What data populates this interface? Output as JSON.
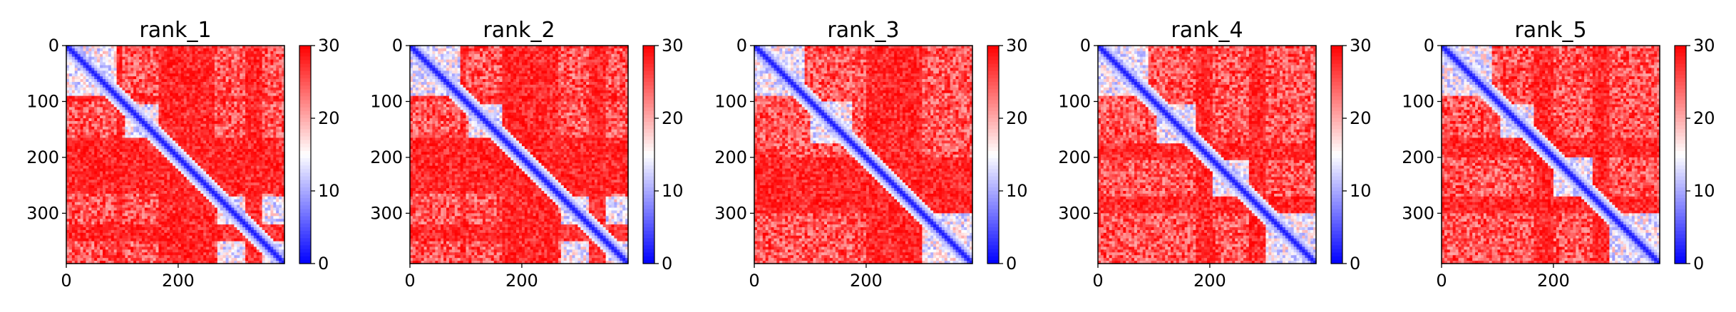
{
  "colormap": {
    "low": "#0000ff",
    "mid": "#ffffff",
    "high": "#ff0000"
  },
  "chart_data": [
    {
      "type": "heatmap",
      "title": "rank_1",
      "size": 390,
      "xlim": [
        0,
        390
      ],
      "ylim": [
        390,
        0
      ],
      "xticks": [
        0,
        200
      ],
      "yticks": [
        0,
        100,
        200,
        300
      ],
      "colorbar": {
        "ticks": [
          0,
          10,
          20,
          30
        ],
        "range": [
          0,
          30
        ]
      },
      "low_blocks": [
        [
          0,
          90
        ],
        [
          105,
          165
        ],
        [
          270,
          390
        ]
      ],
      "high_bands": [
        [
          88,
          100
        ],
        [
          165,
          265
        ],
        [
          200,
          215
        ],
        [
          320,
          350
        ]
      ]
    },
    {
      "type": "heatmap",
      "title": "rank_2",
      "size": 390,
      "xlim": [
        0,
        390
      ],
      "ylim": [
        390,
        0
      ],
      "xticks": [
        0,
        200
      ],
      "yticks": [
        0,
        100,
        200,
        300
      ],
      "colorbar": {
        "ticks": [
          0,
          10,
          20,
          30
        ],
        "range": [
          0,
          30
        ]
      },
      "low_blocks": [
        [
          0,
          90
        ],
        [
          105,
          165
        ],
        [
          270,
          390
        ]
      ],
      "high_bands": [
        [
          88,
          100
        ],
        [
          165,
          265
        ],
        [
          200,
          215
        ],
        [
          320,
          350
        ]
      ]
    },
    {
      "type": "heatmap",
      "title": "rank_3",
      "size": 390,
      "xlim": [
        0,
        390
      ],
      "ylim": [
        390,
        0
      ],
      "xticks": [
        0,
        200
      ],
      "yticks": [
        0,
        100,
        200,
        300
      ],
      "colorbar": {
        "ticks": [
          0,
          10,
          20,
          30
        ],
        "range": [
          0,
          30
        ]
      },
      "low_blocks": [
        [
          0,
          90
        ],
        [
          100,
          175
        ],
        [
          175,
          205
        ],
        [
          300,
          390
        ]
      ],
      "high_bands": [
        [
          200,
          300
        ]
      ]
    },
    {
      "type": "heatmap",
      "title": "rank_4",
      "size": 390,
      "xlim": [
        0,
        390
      ],
      "ylim": [
        390,
        0
      ],
      "xticks": [
        0,
        200
      ],
      "yticks": [
        0,
        100,
        200,
        300
      ],
      "colorbar": {
        "ticks": [
          0,
          10,
          20,
          30
        ],
        "range": [
          0,
          30
        ]
      },
      "low_blocks": [
        [
          0,
          90
        ],
        [
          105,
          175
        ],
        [
          205,
          270
        ],
        [
          300,
          390
        ]
      ],
      "high_bands": [
        [
          175,
          205
        ],
        [
          270,
          300
        ]
      ]
    },
    {
      "type": "heatmap",
      "title": "rank_5",
      "size": 390,
      "xlim": [
        0,
        390
      ],
      "ylim": [
        390,
        0
      ],
      "xticks": [
        0,
        200
      ],
      "yticks": [
        0,
        100,
        200,
        300
      ],
      "colorbar": {
        "ticks": [
          0,
          10,
          20,
          30
        ],
        "range": [
          0,
          30
        ]
      },
      "low_blocks": [
        [
          0,
          90
        ],
        [
          105,
          165
        ],
        [
          200,
          270
        ],
        [
          300,
          390
        ]
      ],
      "high_bands": [
        [
          165,
          200
        ],
        [
          270,
          300
        ]
      ]
    }
  ]
}
